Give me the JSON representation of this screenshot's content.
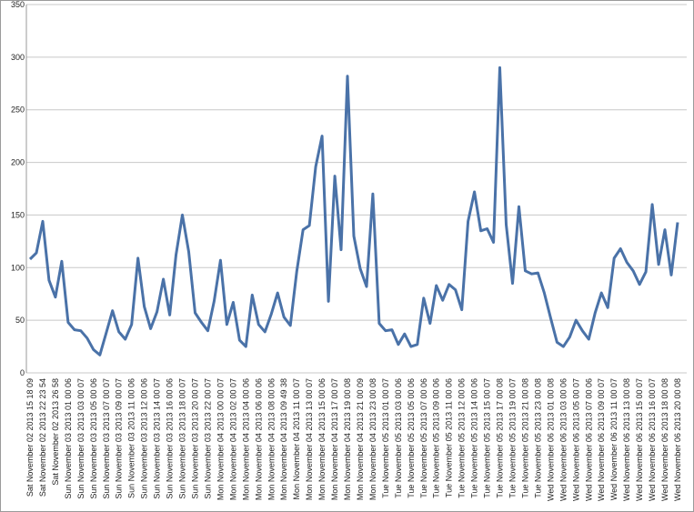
{
  "chart_data": {
    "type": "line",
    "categories": [
      "Sat November 02 2013 15 18 09",
      null,
      "Sat November 02 2013 22 23 54",
      null,
      "Sat November 02 2013 26 58",
      null,
      "Sun November 03 2013 01 00 06",
      null,
      "Sun November 03 2013 03 00 07",
      null,
      "Sun November 03 2013 05 00 06",
      null,
      "Sun November 03 2013 07 00 07",
      null,
      "Sun November 03 2013 09 00 07",
      null,
      "Sun November 03 2013 11 00 06",
      null,
      "Sun November 03 2013 12 00 06",
      null,
      "Sun November 03 2013 14 00 07",
      null,
      "Sun November 03 2013 16 00 06",
      null,
      "Sun November 03 2013 18 00 07",
      null,
      "Sun November 03 2013 20 00 07",
      null,
      "Sun November 03 2013 22 00 07",
      null,
      "Mon November 04 2013 00 00 07",
      null,
      "Mon November 04 2013 02 00 07",
      null,
      "Mon November 04 2013 04 00 06",
      null,
      "Mon November 04 2013 06 00 06",
      null,
      "Mon November 04 2013 08 00 06",
      null,
      "Mon November 04 2013 09 49 38",
      null,
      "Mon November 04 2013 11 00 07",
      null,
      "Mon November 04 2013 13 00 07",
      null,
      "Mon November 04 2013 15 00 06",
      null,
      "Mon November 04 2013 17 00 07",
      null,
      "Mon November 04 2013 19 00 08",
      null,
      "Mon November 04 2013 21 00 09",
      null,
      "Mon November 04 2013 23 00 08",
      null,
      "Tue November 05 2013 01 00 07",
      null,
      "Tue November 05 2013 03 00 06",
      null,
      "Tue November 05 2013 05 00 06",
      null,
      "Tue November 05 2013 07 00 06",
      null,
      "Tue November 05 2013 09 00 06",
      null,
      "Tue November 05 2013 11 00 06",
      null,
      "Tue November 05 2013 12 00 06",
      null,
      "Tue November 05 2013 14 00 06",
      null,
      "Tue November 05 2013 15 00 07",
      null,
      "Tue November 05 2013 17 00 08",
      null,
      "Tue November 05 2013 19 00 07",
      null,
      "Tue November 05 2013 21 00 08",
      null,
      "Tue November 05 2013 23 00 08",
      null,
      "Wed November 06 2013 01 00 08",
      null,
      "Wed November 06 2013 03 00 06",
      null,
      "Wed November 06 2013 05 00 07",
      null,
      "Wed November 06 2013 07 00 06",
      null,
      "Wed November 06 2013 09 00 07",
      null,
      "Wed November 06 2013 11 00 07",
      null,
      "Wed November 06 2013 13 00 08",
      null,
      "Wed November 06 2013 15 00 07",
      null,
      "Wed November 06 2013 16 00 07",
      null,
      "Wed November 06 2013 18 00 08",
      null,
      "Wed November 06 2013 20 00 08"
    ],
    "values": [
      108,
      114,
      144,
      88,
      72,
      106,
      48,
      41,
      40,
      33,
      22,
      17,
      38,
      59,
      39,
      32,
      46,
      109,
      63,
      42,
      58,
      89,
      55,
      112,
      150,
      115,
      57,
      48,
      40,
      68,
      107,
      46,
      67,
      31,
      25,
      74,
      46,
      39,
      56,
      76,
      53,
      45,
      96,
      136,
      140,
      196,
      225,
      68,
      187,
      117,
      282,
      130,
      99,
      82,
      170,
      47,
      40,
      41,
      27,
      37,
      25,
      27,
      71,
      47,
      83,
      69,
      84,
      79,
      60,
      144,
      172,
      135,
      137,
      124,
      290,
      141,
      85,
      158,
      97,
      94,
      95,
      76,
      52,
      29,
      25,
      34,
      50,
      40,
      32,
      57,
      76,
      62,
      109,
      118,
      105,
      97,
      84,
      96,
      160,
      103,
      136,
      93,
      143
    ],
    "color": "#4a72a8",
    "ylim": [
      0,
      350
    ],
    "yticks": [
      0,
      50,
      100,
      150,
      200,
      250,
      300,
      350
    ],
    "grid": true
  }
}
